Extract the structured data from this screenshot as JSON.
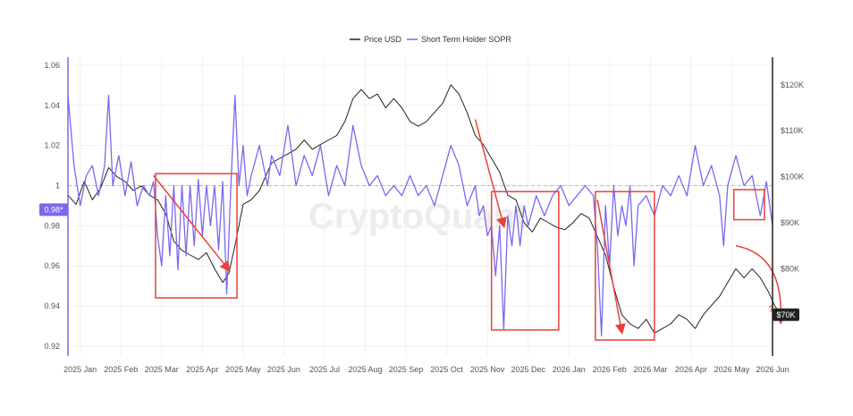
{
  "chart_data": {
    "type": "line",
    "watermark": "CryptoQuant",
    "legend": {
      "placement": "top-center",
      "entries": [
        {
          "name": "Price USD",
          "color": "#222222"
        },
        {
          "name": "Short Term Holder SOPR",
          "color": "#7b68ee"
        }
      ]
    },
    "x_axis": {
      "ticks": [
        "2025 Jan",
        "2025 Feb",
        "2025 Mar",
        "2025 Apr",
        "2025 May",
        "2025 Jun",
        "2025 Jul",
        "2025 Aug",
        "2025 Sep",
        "2025 Oct",
        "2025 Nov",
        "2025 Dec",
        "2026 Jan",
        "2026 Feb",
        "2026 Mar",
        "2026 Apr",
        "2026 May",
        "2026 Jun"
      ],
      "range_months": [
        0,
        17.3
      ]
    },
    "left_axis": {
      "ticks": [
        "1.06",
        "1.04",
        "1.02",
        "1",
        "0.98",
        "0.96",
        "0.94",
        "0.92"
      ],
      "tick_values": [
        1.06,
        1.04,
        1.02,
        1.0,
        0.98,
        0.96,
        0.94,
        0.92
      ],
      "range": [
        0.915,
        1.064
      ],
      "reference_line": 1.0,
      "current_label": "0.98*",
      "current_color": "#7b68ee"
    },
    "right_axis": {
      "ticks": [
        "$120K",
        "$110K",
        "$100K",
        "$90K",
        "$80K"
      ],
      "tick_values": [
        120000,
        110000,
        100000,
        90000,
        80000
      ],
      "range": [
        61000,
        126000
      ],
      "current_label": "$70K",
      "current_value": 70000
    },
    "series": [
      {
        "name": "Price USD",
        "axis": "right",
        "color": "#222222",
        "points": [
          [
            0.0,
            96000
          ],
          [
            0.2,
            94000
          ],
          [
            0.4,
            99000
          ],
          [
            0.6,
            95000
          ],
          [
            0.8,
            97500
          ],
          [
            1.0,
            102000
          ],
          [
            1.2,
            100000
          ],
          [
            1.4,
            99000
          ],
          [
            1.6,
            97000
          ],
          [
            1.8,
            98000
          ],
          [
            2.0,
            96000
          ],
          [
            2.2,
            95000
          ],
          [
            2.4,
            92000
          ],
          [
            2.6,
            86000
          ],
          [
            2.8,
            84000
          ],
          [
            3.0,
            83000
          ],
          [
            3.2,
            82000
          ],
          [
            3.4,
            83500
          ],
          [
            3.6,
            80000
          ],
          [
            3.8,
            77000
          ],
          [
            3.95,
            79000
          ],
          [
            4.1,
            85000
          ],
          [
            4.3,
            94000
          ],
          [
            4.5,
            95000
          ],
          [
            4.7,
            97000
          ],
          [
            5.0,
            103000
          ],
          [
            5.2,
            104000
          ],
          [
            5.4,
            105000
          ],
          [
            5.6,
            106000
          ],
          [
            5.8,
            108000
          ],
          [
            6.0,
            106000
          ],
          [
            6.2,
            107000
          ],
          [
            6.4,
            108000
          ],
          [
            6.6,
            109000
          ],
          [
            6.8,
            112000
          ],
          [
            7.0,
            117000
          ],
          [
            7.2,
            119000
          ],
          [
            7.4,
            117000
          ],
          [
            7.6,
            118000
          ],
          [
            7.8,
            115000
          ],
          [
            8.0,
            117000
          ],
          [
            8.2,
            115000
          ],
          [
            8.4,
            112000
          ],
          [
            8.6,
            111000
          ],
          [
            8.8,
            112000
          ],
          [
            9.0,
            114000
          ],
          [
            9.2,
            116000
          ],
          [
            9.4,
            120000
          ],
          [
            9.6,
            118000
          ],
          [
            9.8,
            114000
          ],
          [
            10.0,
            109000
          ],
          [
            10.2,
            107000
          ],
          [
            10.4,
            104000
          ],
          [
            10.6,
            101000
          ],
          [
            10.8,
            96000
          ],
          [
            11.0,
            95000
          ],
          [
            11.2,
            90000
          ],
          [
            11.4,
            88000
          ],
          [
            11.6,
            91000
          ],
          [
            11.8,
            90000
          ],
          [
            12.0,
            89000
          ],
          [
            12.2,
            88500
          ],
          [
            12.4,
            90000
          ],
          [
            12.6,
            92000
          ],
          [
            12.8,
            91000
          ],
          [
            13.0,
            87000
          ],
          [
            13.2,
            83000
          ],
          [
            13.4,
            76000
          ],
          [
            13.6,
            70000
          ],
          [
            13.8,
            68000
          ],
          [
            14.0,
            67000
          ],
          [
            14.2,
            69000
          ],
          [
            14.4,
            66000
          ],
          [
            14.6,
            67000
          ],
          [
            14.8,
            68000
          ],
          [
            15.0,
            70000
          ],
          [
            15.2,
            69000
          ],
          [
            15.4,
            67000
          ],
          [
            15.6,
            70000
          ],
          [
            15.8,
            72000
          ],
          [
            16.0,
            74000
          ],
          [
            16.2,
            77000
          ],
          [
            16.4,
            80000
          ],
          [
            16.6,
            78000
          ],
          [
            16.8,
            80000
          ],
          [
            17.0,
            78000
          ],
          [
            17.2,
            75000
          ],
          [
            17.35,
            72000
          ],
          [
            17.5,
            70000
          ]
        ]
      },
      {
        "name": "Short Term Holder SOPR",
        "axis": "left",
        "color": "#7b68ee",
        "points": [
          [
            0.0,
            1.045
          ],
          [
            0.15,
            1.01
          ],
          [
            0.3,
            0.99
          ],
          [
            0.45,
            1.005
          ],
          [
            0.6,
            1.01
          ],
          [
            0.75,
            0.995
          ],
          [
            0.9,
            1.01
          ],
          [
            1.0,
            1.045
          ],
          [
            1.1,
            1.0
          ],
          [
            1.25,
            1.015
          ],
          [
            1.4,
            0.995
          ],
          [
            1.55,
            1.012
          ],
          [
            1.7,
            0.99
          ],
          [
            1.85,
            1.0
          ],
          [
            2.0,
            0.995
          ],
          [
            2.1,
            1.002
          ],
          [
            2.2,
            0.975
          ],
          [
            2.3,
            0.96
          ],
          [
            2.4,
            0.995
          ],
          [
            2.5,
            0.965
          ],
          [
            2.6,
            1.0
          ],
          [
            2.7,
            0.958
          ],
          [
            2.8,
            1.0
          ],
          [
            2.9,
            0.965
          ],
          [
            3.0,
            1.0
          ],
          [
            3.1,
            0.97
          ],
          [
            3.2,
            1.003
          ],
          [
            3.3,
            0.975
          ],
          [
            3.4,
            1.0
          ],
          [
            3.5,
            0.98
          ],
          [
            3.6,
            1.0
          ],
          [
            3.7,
            0.968
          ],
          [
            3.8,
            1.002
          ],
          [
            3.9,
            0.946
          ],
          [
            4.0,
            1.0
          ],
          [
            4.1,
            1.045
          ],
          [
            4.2,
            1.0
          ],
          [
            4.3,
            1.02
          ],
          [
            4.4,
            0.995
          ],
          [
            4.5,
            1.005
          ],
          [
            4.7,
            1.02
          ],
          [
            4.9,
            1.0
          ],
          [
            5.0,
            1.015
          ],
          [
            5.2,
            1.005
          ],
          [
            5.4,
            1.03
          ],
          [
            5.6,
            1.0
          ],
          [
            5.8,
            1.015
          ],
          [
            6.0,
            1.005
          ],
          [
            6.2,
            1.02
          ],
          [
            6.4,
            0.995
          ],
          [
            6.6,
            1.01
          ],
          [
            6.8,
            1.0
          ],
          [
            7.0,
            1.03
          ],
          [
            7.2,
            1.01
          ],
          [
            7.4,
            1.0
          ],
          [
            7.6,
            1.005
          ],
          [
            7.8,
            0.995
          ],
          [
            8.0,
            1.0
          ],
          [
            8.2,
            0.995
          ],
          [
            8.4,
            1.005
          ],
          [
            8.6,
            0.995
          ],
          [
            8.8,
            1.0
          ],
          [
            9.0,
            0.99
          ],
          [
            9.2,
            1.005
          ],
          [
            9.4,
            1.02
          ],
          [
            9.6,
            1.01
          ],
          [
            9.8,
            0.99
          ],
          [
            10.0,
            1.0
          ],
          [
            10.1,
            0.985
          ],
          [
            10.2,
            0.99
          ],
          [
            10.3,
            0.975
          ],
          [
            10.4,
            0.98
          ],
          [
            10.5,
            0.955
          ],
          [
            10.6,
            0.98
          ],
          [
            10.7,
            0.928
          ],
          [
            10.8,
            0.985
          ],
          [
            10.9,
            0.97
          ],
          [
            11.0,
            0.99
          ],
          [
            11.1,
            0.97
          ],
          [
            11.2,
            0.99
          ],
          [
            11.3,
            0.98
          ],
          [
            11.5,
            0.995
          ],
          [
            11.7,
            0.985
          ],
          [
            11.9,
            0.995
          ],
          [
            12.1,
            1.0
          ],
          [
            12.3,
            0.99
          ],
          [
            12.5,
            0.995
          ],
          [
            12.7,
            1.0
          ],
          [
            12.9,
            0.995
          ],
          [
            13.0,
            0.97
          ],
          [
            13.1,
            0.925
          ],
          [
            13.2,
            0.99
          ],
          [
            13.3,
            0.96
          ],
          [
            13.4,
            1.0
          ],
          [
            13.5,
            0.975
          ],
          [
            13.6,
            0.99
          ],
          [
            13.7,
            0.98
          ],
          [
            13.8,
            1.0
          ],
          [
            13.9,
            0.96
          ],
          [
            14.0,
            0.99
          ],
          [
            14.2,
            0.995
          ],
          [
            14.4,
            0.985
          ],
          [
            14.6,
            1.0
          ],
          [
            14.8,
            0.995
          ],
          [
            15.0,
            1.005
          ],
          [
            15.2,
            0.995
          ],
          [
            15.4,
            1.02
          ],
          [
            15.6,
            1.0
          ],
          [
            15.8,
            1.01
          ],
          [
            16.0,
            0.995
          ],
          [
            16.1,
            0.97
          ],
          [
            16.2,
            1.0
          ],
          [
            16.4,
            1.015
          ],
          [
            16.6,
            1.0
          ],
          [
            16.8,
            1.005
          ],
          [
            17.0,
            0.985
          ],
          [
            17.15,
            1.002
          ],
          [
            17.3,
            0.98
          ]
        ]
      }
    ],
    "highlight_boxes": [
      {
        "x_range": [
          2.15,
          4.15
        ],
        "y_range": [
          0.944,
          1.006
        ],
        "arrow": "down"
      },
      {
        "x_range": [
          10.4,
          12.05
        ],
        "y_range": [
          0.928,
          0.997
        ],
        "arrow": "down"
      },
      {
        "x_range": [
          12.95,
          14.4
        ],
        "y_range": [
          0.923,
          0.997
        ],
        "arrow": "down"
      },
      {
        "x_range": [
          16.35,
          17.1
        ],
        "y_range": [
          0.983,
          0.998
        ],
        "arrow": "none"
      }
    ],
    "trend_arrows": [
      {
        "from": [
          2.1,
          1.005
        ],
        "to": [
          3.95,
          0.958
        ]
      },
      {
        "from": [
          10.0,
          1.033
        ],
        "to": [
          10.7,
          0.98
        ]
      },
      {
        "from": [
          13.0,
          0.993
        ],
        "to": [
          13.6,
          0.927
        ]
      },
      {
        "from": [
          16.4,
          0.97
        ],
        "to": [
          17.5,
          0.932
        ]
      }
    ],
    "annotation": {
      "text": "?",
      "at": [
        17.2,
        0.937
      ],
      "color": "#e8413a"
    },
    "box_color": "#e8413a"
  }
}
